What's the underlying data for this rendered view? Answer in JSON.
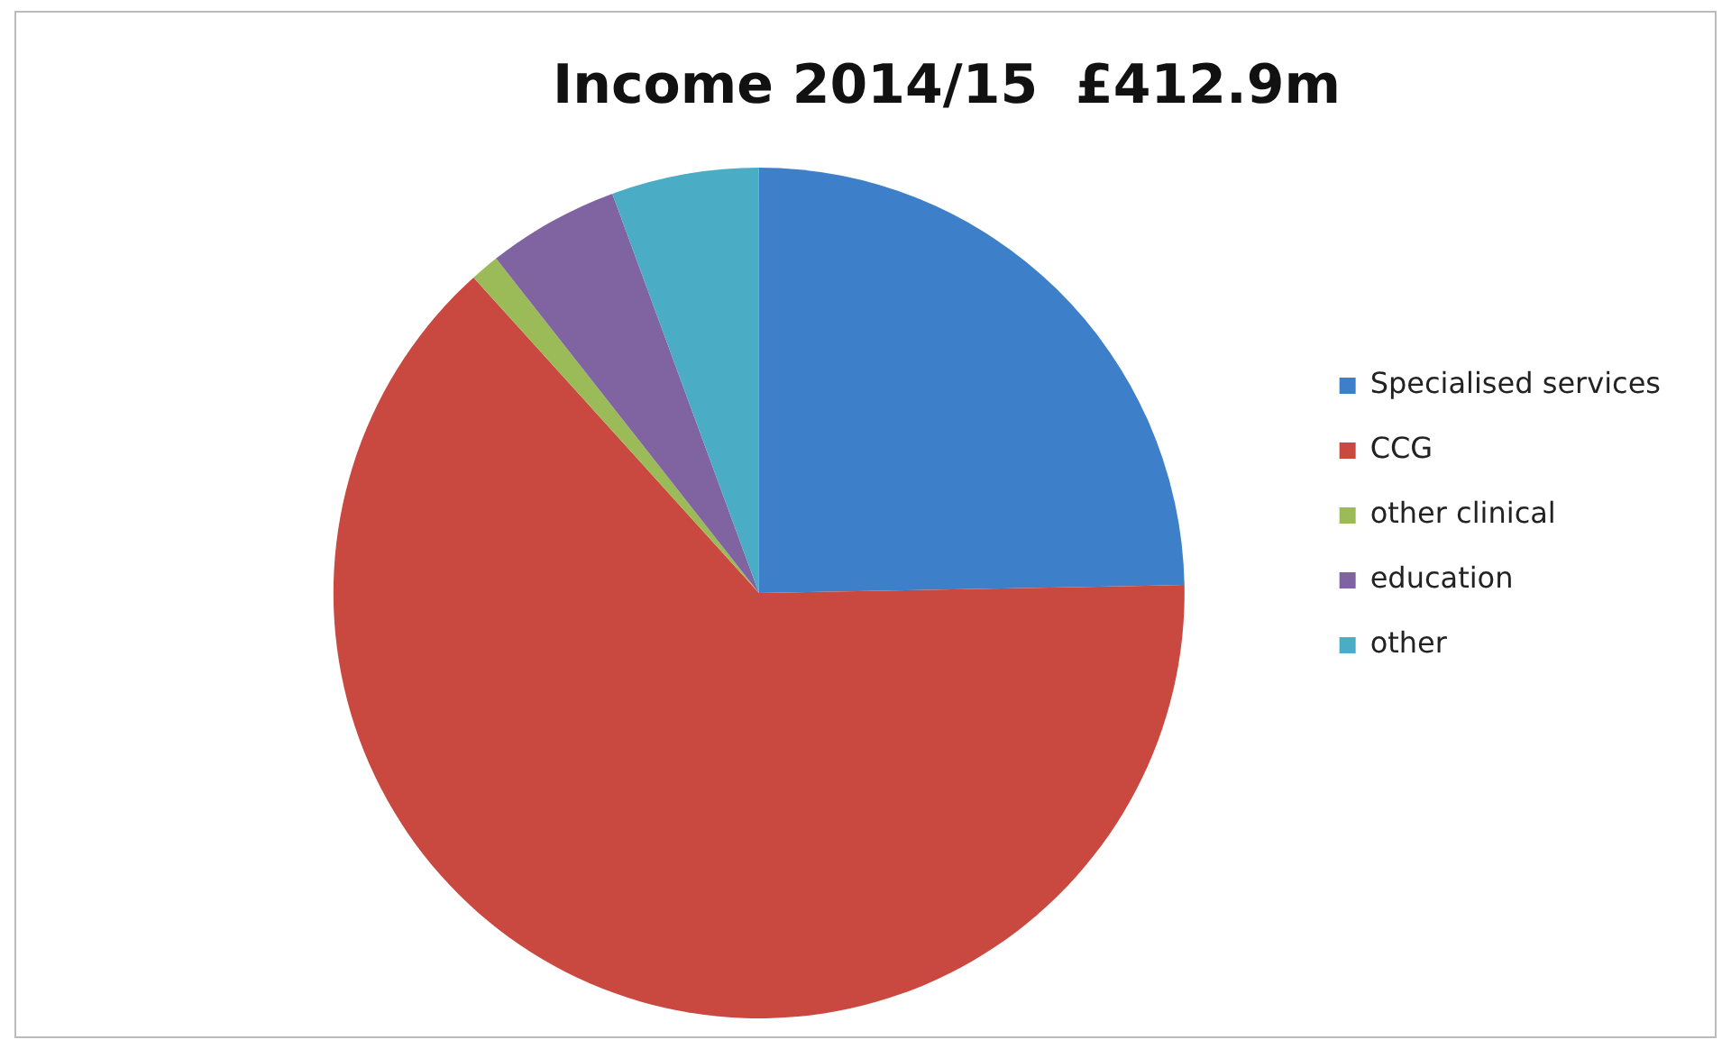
{
  "chart_data": {
    "type": "pie",
    "title": "Income 2014/15  £412.9m",
    "categories": [
      "Specialised services",
      "CCG",
      "other clinical",
      "education",
      "other"
    ],
    "values": [
      24.7,
      63.6,
      1.1,
      5.0,
      5.6
    ],
    "colors": [
      "#3d7fc9",
      "#c9483f",
      "#9bbb59",
      "#8064a2",
      "#4bacc6"
    ],
    "legend": "right"
  }
}
